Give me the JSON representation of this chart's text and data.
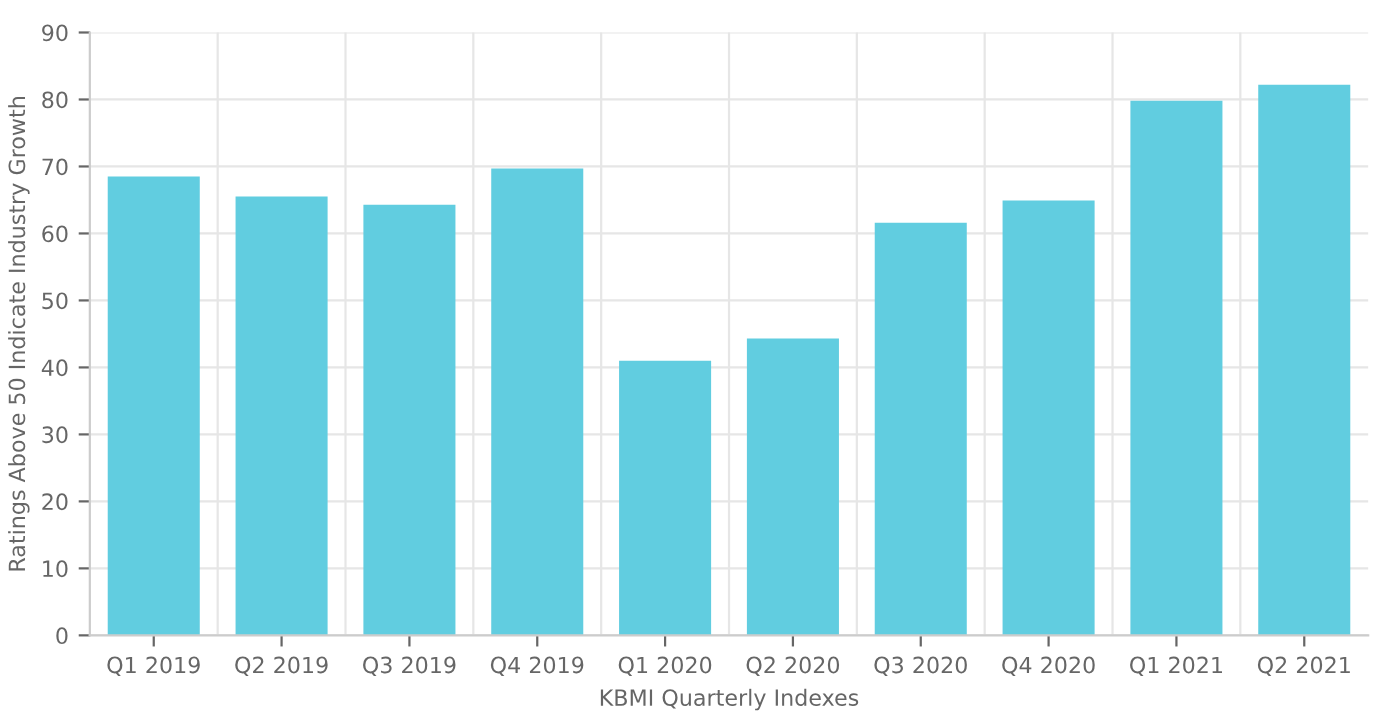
{
  "chart_data": {
    "type": "bar",
    "xlabel": "KBMI Quarterly Indexes",
    "ylabel": "Ratings Above 50 Indicate Industry Growth",
    "categories": [
      "Q1 2019",
      "Q2 2019",
      "Q3 2019",
      "Q4 2019",
      "Q1 2020",
      "Q2 2020",
      "Q3 2020",
      "Q4 2020",
      "Q1 2021",
      "Q2 2021"
    ],
    "values": [
      68.5,
      65.5,
      64.3,
      69.7,
      41,
      44.3,
      61.6,
      64.9,
      79.8,
      82.2
    ],
    "color": "#61cde0",
    "ylim": [
      0,
      90
    ],
    "yticks": [
      0,
      10,
      20,
      30,
      40,
      50,
      60,
      70,
      80,
      90
    ],
    "grid": true,
    "legend": false
  }
}
